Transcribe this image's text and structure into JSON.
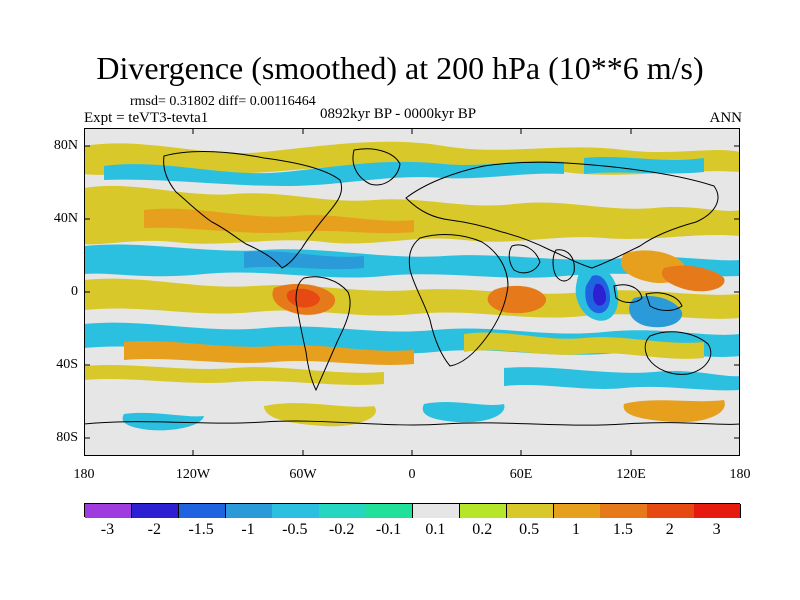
{
  "title": "Divergence (smoothed) at 200 hPa (10**6 m/s)",
  "stats": "rmsd= 0.31802 diff= 0.00116464",
  "experiment": "Expt = teVT3-tevta1",
  "period": "0892kyr BP - 0000kyr BP",
  "season": "ANN",
  "y_ticks": [
    "80N",
    "40N",
    "0",
    "40S",
    "80S"
  ],
  "x_ticks": [
    "180",
    "120W",
    "60W",
    "0",
    "60E",
    "120E",
    "180"
  ],
  "colorbar": {
    "labels": [
      "-3",
      "-2",
      "-1.5",
      "-1",
      "-0.5",
      "-0.2",
      "-0.1",
      "0.1",
      "0.2",
      "0.5",
      "1",
      "1.5",
      "2",
      "3"
    ],
    "colors": [
      "#9e3ce0",
      "#2d1fd2",
      "#1f63e0",
      "#2a9ad8",
      "#2cc0e0",
      "#27d6c0",
      "#20e09a",
      "#e6e6e6",
      "#b6e62a",
      "#d8c82a",
      "#e6a01e",
      "#e67a1a",
      "#e64a12",
      "#e61a0e"
    ]
  },
  "map_colors": {
    "neutral": "#e6e6e6",
    "pos_low": "#b6e62a",
    "pos_mid": "#d8c82a",
    "pos_high": "#e6a01e",
    "pos_very_high": "#e67a1a",
    "pos_extreme": "#e64a12",
    "neg_low": "#20e09a",
    "neg_mid": "#2cc0e0",
    "neg_high": "#2a9ad8",
    "neg_very_high": "#1f63e0",
    "neg_extreme": "#2d1fd2"
  }
}
